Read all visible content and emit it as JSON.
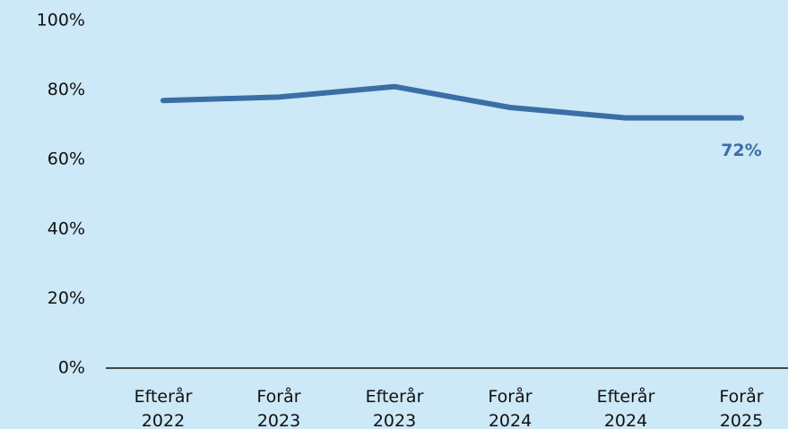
{
  "chart_data": {
    "type": "line",
    "categories": [
      [
        "Efterår",
        "2022"
      ],
      [
        "Forår",
        "2023"
      ],
      [
        "Efterår",
        "2023"
      ],
      [
        "Forår",
        "2024"
      ],
      [
        "Efterår",
        "2024"
      ],
      [
        "Forår",
        "2025"
      ]
    ],
    "series": [
      {
        "color": "#3a6fa6",
        "values": [
          77,
          78,
          81,
          75,
          72,
          72
        ],
        "value_labels": [
          null,
          null,
          null,
          null,
          null,
          "72%"
        ]
      }
    ],
    "ylim": [
      0,
      100
    ],
    "yticks": [
      {
        "value": 0,
        "label": "0%"
      },
      {
        "value": 20,
        "label": "20%"
      },
      {
        "value": 40,
        "label": "40%"
      },
      {
        "value": 60,
        "label": "60%"
      },
      {
        "value": 80,
        "label": "80%"
      },
      {
        "value": 100,
        "label": "100%"
      }
    ],
    "grid": false
  }
}
